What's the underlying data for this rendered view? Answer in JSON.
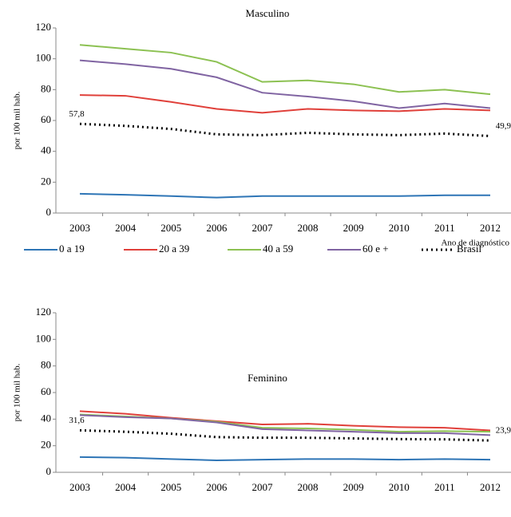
{
  "chart_data": [
    {
      "type": "line",
      "title": "Masculino",
      "y_label": "por 100 mil hab.",
      "x_label": "Ano de diagnóstico",
      "categories": [
        "2003",
        "2004",
        "2005",
        "2006",
        "2007",
        "2008",
        "2009",
        "2010",
        "2011",
        "2012"
      ],
      "ylim": [
        0,
        120
      ],
      "yticks": [
        0,
        20,
        40,
        60,
        80,
        100,
        120
      ],
      "series": [
        {
          "name": "0 a 19",
          "color": "#2e75b6",
          "values": [
            12.5,
            11.8,
            11,
            10,
            11,
            11,
            11,
            11,
            11.5,
            11.5
          ]
        },
        {
          "name": "20 a 39",
          "color": "#e0403a",
          "values": [
            76.5,
            76,
            72,
            67.5,
            65,
            67.5,
            66.5,
            66,
            67.5,
            66.5
          ]
        },
        {
          "name": "40 a 59",
          "color": "#8cc152",
          "values": [
            109,
            106.5,
            104,
            98,
            85,
            86,
            83.5,
            78.5,
            80,
            77
          ]
        },
        {
          "name": "60 e +",
          "color": "#8064a2",
          "values": [
            99,
            96.5,
            93.5,
            88,
            78,
            75.5,
            72.5,
            68,
            71,
            68
          ]
        },
        {
          "name": "Brasil",
          "color": "#000000",
          "dotted": true,
          "values": [
            57.8,
            56.5,
            54.5,
            51,
            50.5,
            52,
            51,
            50.5,
            51.5,
            49.9
          ],
          "value_labels": [
            "57,8",
            null,
            null,
            null,
            null,
            null,
            null,
            null,
            null,
            "49,9"
          ]
        }
      ]
    },
    {
      "type": "line",
      "title": "Feminino",
      "y_label": "por 100 mil hab.",
      "categories": [
        "2003",
        "2004",
        "2005",
        "2006",
        "2007",
        "2008",
        "2009",
        "2010",
        "2011",
        "2012"
      ],
      "ylim": [
        0,
        120
      ],
      "yticks": [
        0,
        20,
        40,
        60,
        80,
        100,
        120
      ],
      "series": [
        {
          "color": "#2e75b6",
          "values": [
            11.5,
            11,
            10,
            9,
            9.5,
            10,
            10,
            9.5,
            10,
            9.5
          ]
        },
        {
          "color": "#e0403a",
          "values": [
            46,
            44,
            41,
            38.5,
            36,
            36.5,
            35,
            34,
            33.5,
            31.5
          ]
        },
        {
          "color": "#8cc152",
          "values": [
            43.5,
            42,
            40.5,
            38,
            33.5,
            33,
            32,
            30.5,
            31,
            30.5
          ]
        },
        {
          "color": "#8064a2",
          "values": [
            43,
            41.5,
            40.5,
            37.5,
            32.5,
            31.5,
            30.5,
            29.5,
            29.5,
            28
          ]
        },
        {
          "color": "#000000",
          "dotted": true,
          "values": [
            31.6,
            30.5,
            29,
            26.5,
            26,
            26,
            25.5,
            25,
            24.8,
            23.9
          ],
          "value_labels": [
            "31,6",
            null,
            null,
            null,
            null,
            null,
            null,
            null,
            null,
            "23,9"
          ]
        }
      ]
    }
  ]
}
